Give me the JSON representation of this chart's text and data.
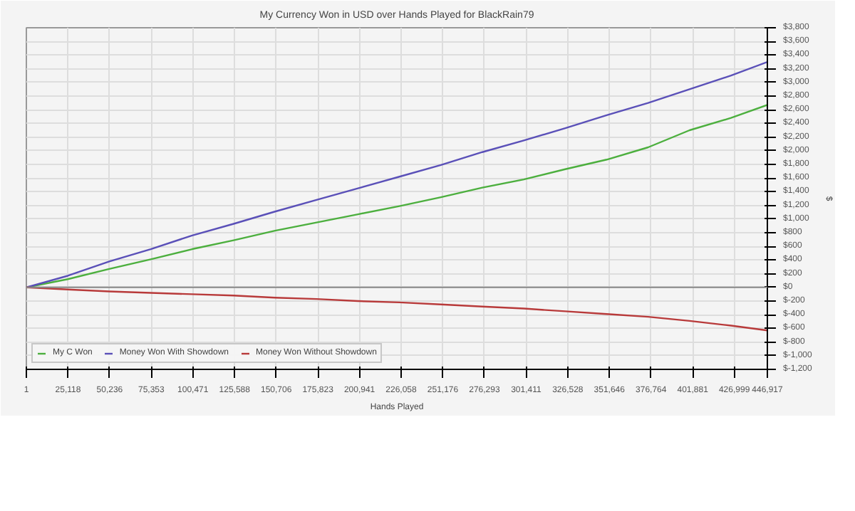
{
  "chart_data": {
    "type": "line",
    "title": "My Currency Won in USD over Hands Played for BlackRain79",
    "xlabel": "Hands Played",
    "ylabel": "$",
    "x": [
      1,
      25000,
      50000,
      75000,
      100000,
      125000,
      150000,
      175000,
      200000,
      225000,
      250000,
      275000,
      300000,
      325000,
      350000,
      375000,
      400000,
      425000,
      446917
    ],
    "series": [
      {
        "name": "My C Won",
        "color": "#4caf3e",
        "values": [
          0,
          120,
          270,
          410,
          560,
          690,
          830,
          950,
          1070,
          1190,
          1320,
          1460,
          1580,
          1730,
          1870,
          2050,
          2300,
          2480,
          2670
        ]
      },
      {
        "name": "Money Won With Showdown",
        "color": "#5a50b8",
        "values": [
          0,
          170,
          380,
          560,
          760,
          930,
          1110,
          1280,
          1450,
          1620,
          1790,
          1980,
          2150,
          2330,
          2520,
          2700,
          2900,
          3100,
          3300
        ]
      },
      {
        "name": "Money Won Without Showdown",
        "color": "#b83a3a",
        "values": [
          0,
          -30,
          -60,
          -80,
          -100,
          -120,
          -150,
          -170,
          -200,
          -220,
          -250,
          -280,
          -310,
          -350,
          -390,
          -430,
          -490,
          -560,
          -630
        ]
      }
    ],
    "xlim": [
      1,
      446917
    ],
    "ylim": [
      -1200,
      3800
    ],
    "xticks": [
      1,
      {
        "value": 25118,
        "label": "25,118"
      },
      {
        "value": 50236,
        "label": "50,236"
      },
      {
        "value": 75353,
        "label": "75,353"
      },
      {
        "value": 100471,
        "label": "100,471"
      },
      {
        "value": 125588,
        "label": "125,588"
      },
      {
        "value": 150706,
        "label": "150,706"
      },
      {
        "value": 175823,
        "label": "175,823"
      },
      {
        "value": 200941,
        "label": "200,941"
      },
      {
        "value": 226058,
        "label": "226,058"
      },
      {
        "value": 251176,
        "label": "251,176"
      },
      {
        "value": 276293,
        "label": "276,293"
      },
      {
        "value": 301411,
        "label": "301,411"
      },
      {
        "value": 326528,
        "label": "326,528"
      },
      {
        "value": 351646,
        "label": "351,646"
      },
      {
        "value": 376764,
        "label": "376,764"
      },
      {
        "value": 401881,
        "label": "401,881"
      },
      {
        "value": 426999,
        "label": "426,999"
      },
      {
        "value": 446917,
        "label": "446,917"
      }
    ],
    "yticks": [
      {
        "value": -1200,
        "label": "$-1,200"
      },
      {
        "value": -1000,
        "label": "$-1,000"
      },
      {
        "value": -800,
        "label": "$-800"
      },
      {
        "value": -600,
        "label": "$-600"
      },
      {
        "value": -400,
        "label": "$-400"
      },
      {
        "value": -200,
        "label": "$-200"
      },
      {
        "value": 0,
        "label": "$0"
      },
      {
        "value": 200,
        "label": "$200"
      },
      {
        "value": 400,
        "label": "$400"
      },
      {
        "value": 600,
        "label": "$600"
      },
      {
        "value": 800,
        "label": "$800"
      },
      {
        "value": 1000,
        "label": "$1,000"
      },
      {
        "value": 1200,
        "label": "$1,200"
      },
      {
        "value": 1400,
        "label": "$1,400"
      },
      {
        "value": 1600,
        "label": "$1,600"
      },
      {
        "value": 1800,
        "label": "$1,800"
      },
      {
        "value": 2000,
        "label": "$2,000"
      },
      {
        "value": 2200,
        "label": "$2,200"
      },
      {
        "value": 2400,
        "label": "$2,400"
      },
      {
        "value": 2600,
        "label": "$2,600"
      },
      {
        "value": 2800,
        "label": "$2,800"
      },
      {
        "value": 3000,
        "label": "$3,000"
      },
      {
        "value": 3200,
        "label": "$3,200"
      },
      {
        "value": 3400,
        "label": "$3,400"
      },
      {
        "value": 3600,
        "label": "$3,600"
      },
      {
        "value": 3800,
        "label": "$3,800"
      }
    ],
    "ref_lines": [
      {
        "axis": "y",
        "value": 0,
        "color": "#888888"
      }
    ],
    "grid": true,
    "legend": "bottom left"
  }
}
